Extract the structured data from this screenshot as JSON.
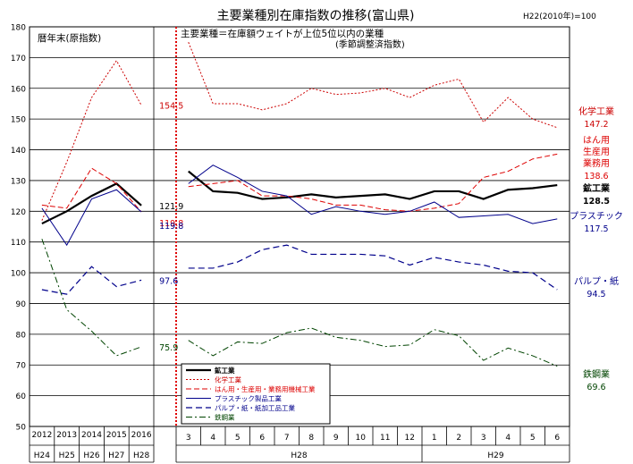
{
  "chart_data": {
    "type": "line",
    "title": "主要業種別在庫指数の推移(富山県)",
    "base_note": "H22(2010年)=100",
    "left_panel_label": "暦年末(原指数)",
    "right_panel_label": "主要業種＝在庫額ウェイトが上位5位以内の業種",
    "right_panel_sublabel": "(季節調整済指数)",
    "ylim": [
      50,
      180
    ],
    "y_ticks": [
      "50",
      "60",
      "70",
      "80",
      "90",
      "100",
      "110",
      "120",
      "130",
      "140",
      "150",
      "160",
      "170",
      "180"
    ],
    "annual": {
      "x": [
        "2012",
        "2013",
        "2014",
        "2015",
        "2016"
      ],
      "era": [
        "H24",
        "H25",
        "H26",
        "H27",
        "H28"
      ]
    },
    "monthly": {
      "x": [
        "3",
        "4",
        "5",
        "6",
        "7",
        "8",
        "9",
        "10",
        "11",
        "12",
        "1",
        "2",
        "3",
        "4",
        "5",
        "6"
      ],
      "year_labels": [
        "H28",
        "H29"
      ]
    },
    "series": [
      {
        "name": "鉱工業",
        "color": "#000000",
        "annual": [
          116,
          120,
          125,
          129,
          121.9
        ],
        "monthly": [
          133,
          126.5,
          126,
          124,
          124.5,
          125.5,
          124.5,
          125,
          125.5,
          124,
          126.5,
          126.5,
          124,
          127,
          127.5,
          128.5
        ]
      },
      {
        "name": "化学工業",
        "color": "#cc0000",
        "annual": [
          117,
          136,
          157,
          169,
          154.5
        ],
        "monthly": [
          175,
          155,
          155,
          153,
          155,
          160,
          158,
          158.5,
          160,
          157,
          161,
          163,
          149,
          157,
          150,
          147.2
        ]
      },
      {
        "name": "はん用・生産用・業務用機械工業",
        "color": "#dd0000",
        "annual": [
          122,
          121,
          134,
          129,
          119.8
        ],
        "monthly": [
          128,
          129,
          130,
          125,
          125,
          124,
          122,
          122,
          120.5,
          120,
          121,
          122.5,
          131,
          133,
          137,
          138.6
        ]
      },
      {
        "name": "プラスチック製品工業",
        "color": "#00008b",
        "annual": [
          121,
          109,
          124,
          127,
          119.8
        ],
        "monthly": [
          129,
          135,
          131,
          126.5,
          125,
          119,
          121.5,
          120,
          119,
          120,
          123,
          118,
          118.5,
          119,
          116,
          117.5
        ]
      },
      {
        "name": "パルプ・紙・紙加工品工業",
        "color": "#00008b",
        "annual": [
          94.5,
          93,
          102,
          95.5,
          97.6
        ],
        "monthly": [
          101.5,
          101.5,
          103.5,
          107.5,
          109,
          106,
          106,
          106,
          105.5,
          102.5,
          105,
          103.5,
          102.5,
          100.5,
          100,
          94.5
        ]
      },
      {
        "name": "鉄鋼業",
        "color": "#004400",
        "annual": [
          111,
          88,
          81,
          73,
          75.9
        ],
        "monthly": [
          78,
          73,
          77.5,
          77,
          80.5,
          82,
          79,
          78,
          76,
          76.5,
          81.5,
          79.5,
          71.5,
          75.5,
          73,
          69.6
        ]
      }
    ],
    "annual_end_labels": [
      {
        "series": "鉱工業",
        "value": "121.9"
      },
      {
        "series": "化学工業",
        "value": "154.5"
      },
      {
        "series": "はん用・生産用・業務用機械工業",
        "value": "119.8"
      },
      {
        "series": "プラスチック製品工業",
        "value": "119.8"
      },
      {
        "series": "パルプ・紙・紙加工品工業",
        "value": "97.6"
      },
      {
        "series": "鉄鋼業",
        "value": "75.9"
      }
    ],
    "right_labels": [
      {
        "series": "化学工業",
        "lines": [
          "化学工業"
        ],
        "value": "147.2",
        "color": "#cc0000"
      },
      {
        "series": "はん用・生産用・業務用機械工業",
        "lines": [
          "はん用",
          "生産用",
          "業務用"
        ],
        "value": "138.6",
        "color": "#dd0000"
      },
      {
        "series": "鉱工業",
        "lines": [
          "鉱工業"
        ],
        "value": "128.5",
        "color": "#000000"
      },
      {
        "series": "プラスチック製品工業",
        "lines": [
          "プラスチック"
        ],
        "value": "117.5",
        "color": "#00008b"
      },
      {
        "series": "パルプ・紙・紙加工品工業",
        "lines": [
          "パルプ・紙"
        ],
        "value": "94.5",
        "color": "#00008b"
      },
      {
        "series": "鉄鋼業",
        "lines": [
          "鉄鋼業"
        ],
        "value": "69.6",
        "color": "#004400"
      }
    ],
    "legend_placement": "bottom-center",
    "grid": true
  }
}
